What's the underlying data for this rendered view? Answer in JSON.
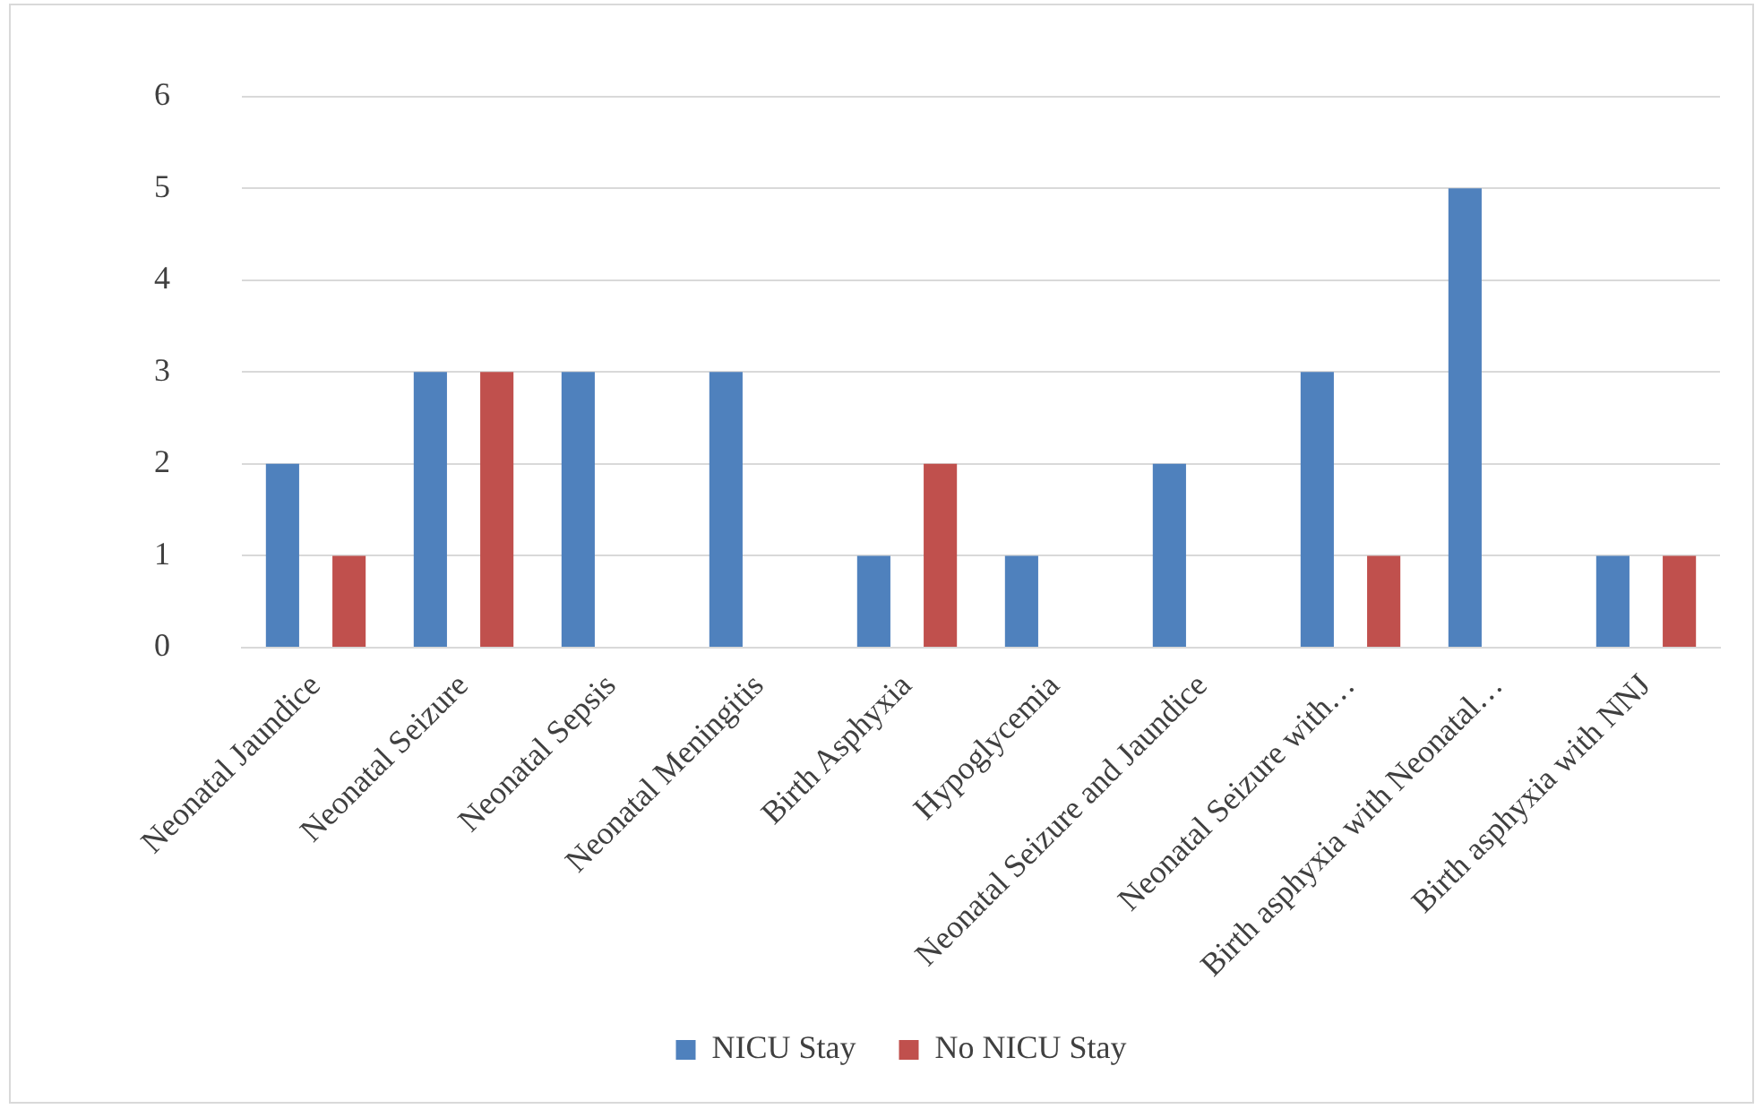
{
  "chart_data": {
    "type": "bar",
    "categories": [
      "Neonatal Jaundice",
      "Neonatal Seizure",
      "Neonatal Sepsis",
      "Neonatal Meningitis",
      "Birth Asphyxia",
      "Hypoglycemia",
      "Neonatal Seizure and Jaundice",
      "Neonatal Seizure with…",
      "Birth asphyxia with Neonatal…",
      "Birth asphyxia with NNJ"
    ],
    "series": [
      {
        "name": "NICU Stay",
        "color": "#4f81bd",
        "values": [
          2,
          3,
          3,
          3,
          1,
          1,
          2,
          3,
          5,
          1
        ]
      },
      {
        "name": "No NICU Stay",
        "color": "#c0504d",
        "values": [
          1,
          3,
          0,
          0,
          2,
          0,
          0,
          1,
          0,
          1
        ]
      }
    ],
    "ylim": [
      0,
      6
    ],
    "yticks": [
      0,
      1,
      2,
      3,
      4,
      5,
      6
    ],
    "grid": "y",
    "legend": "bottom"
  }
}
